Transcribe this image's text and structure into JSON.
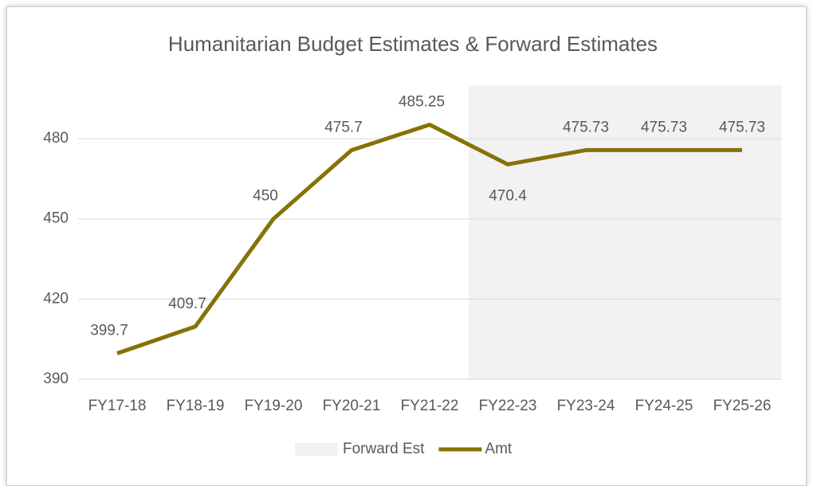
{
  "chart_data": {
    "type": "line",
    "title": "Humanitarian Budget Estimates & Forward Estimates",
    "categories": [
      "FY17-18",
      "FY18-19",
      "FY19-20",
      "FY20-21",
      "FY21-22",
      "FY22-23",
      "FY23-24",
      "FY24-25",
      "FY25-26"
    ],
    "series": [
      {
        "name": "Forward Est",
        "type": "bar",
        "color": "#f2f2f2",
        "values": [
          null,
          null,
          null,
          null,
          null,
          500,
          500,
          500,
          500
        ]
      },
      {
        "name": "Amt",
        "type": "line",
        "color": "#857208",
        "values": [
          399.7,
          409.7,
          450,
          475.7,
          485.25,
          470.4,
          475.73,
          475.73,
          475.73
        ]
      }
    ],
    "ylim": [
      390,
      500
    ],
    "yticks": [
      390,
      420,
      450,
      480
    ],
    "grid": true,
    "legend": "bottom"
  }
}
